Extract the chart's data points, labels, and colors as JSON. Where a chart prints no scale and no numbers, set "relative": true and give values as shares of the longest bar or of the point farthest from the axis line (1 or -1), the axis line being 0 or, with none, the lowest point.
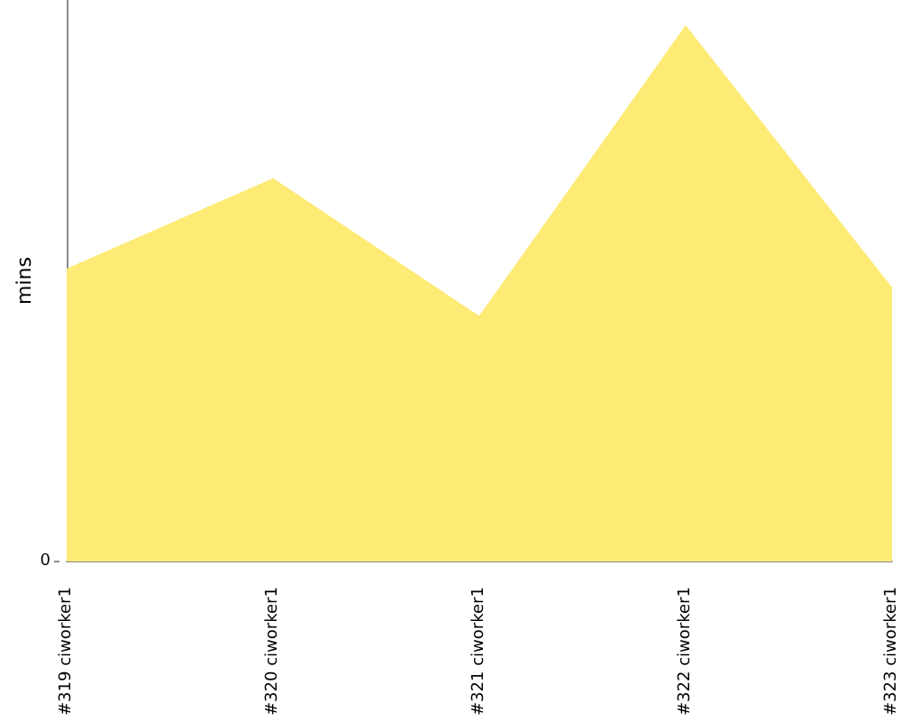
{
  "chart_data": {
    "type": "area",
    "ylabel": "mins",
    "relative": true,
    "categories": [
      "#319 ciworker1",
      "#320 ciworker1",
      "#321 ciworker1",
      "#322 ciworker1",
      "#323 ciworker1"
    ],
    "series": [
      {
        "color": "#fdeb76",
        "values": [
          0.546,
          0.715,
          0.457,
          1,
          0.51
        ]
      }
    ],
    "annotations": [
      "0"
    ],
    "grid": false,
    "marker": "none"
  }
}
